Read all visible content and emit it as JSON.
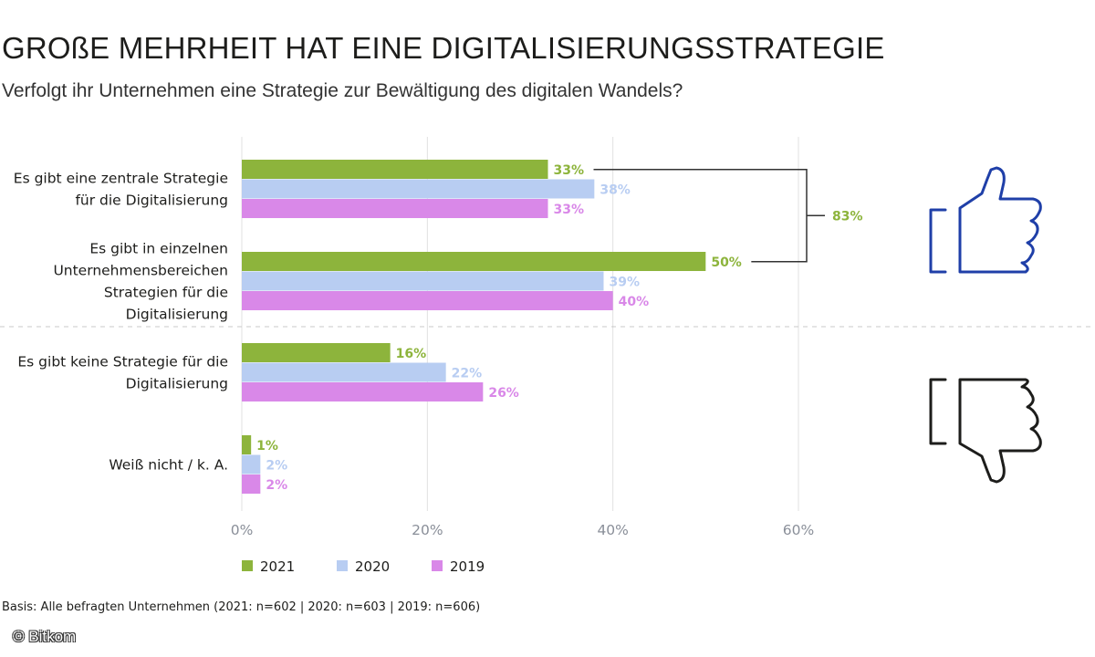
{
  "chart_data": {
    "type": "bar",
    "orientation": "horizontal",
    "title": "GROßE MEHRHEIT HAT EINE DIGITALISIERUNGSSTRATEGIE",
    "subtitle": "Verfolgt ihr Unternehmen eine Strategie zur Bewältigung des digitalen Wandels?",
    "categories": [
      {
        "lines": [
          "Es gibt eine zentrale Strategie",
          "für die Digitalisierung"
        ]
      },
      {
        "lines": [
          "Es gibt in einzelnen",
          "Unternehmensbereichen",
          "Strategien für die",
          "Digitalisierung"
        ]
      },
      {
        "lines": [
          "Es gibt keine Strategie für die",
          "Digitalisierung"
        ]
      },
      {
        "lines": [
          "Weiß nicht / k. A."
        ]
      }
    ],
    "series": [
      {
        "name": "2021",
        "color": "#8db43c",
        "values": [
          33,
          50,
          16,
          1
        ],
        "labels": [
          "33%",
          "50%",
          "16%",
          "1%"
        ]
      },
      {
        "name": "2020",
        "color": "#b8cdf2",
        "values": [
          38,
          39,
          22,
          2
        ],
        "labels": [
          "38%",
          "39%",
          "22%",
          "2%"
        ]
      },
      {
        "name": "2019",
        "color": "#d988e8",
        "values": [
          33,
          40,
          26,
          2
        ],
        "labels": [
          "33%",
          "40%",
          "26%",
          "2%"
        ]
      }
    ],
    "xlim": [
      0,
      60
    ],
    "xticks": [
      0,
      20,
      40,
      60
    ],
    "xtick_labels": [
      "0%",
      "20%",
      "40%",
      "60%"
    ],
    "grid": true,
    "legend_position": "bottom",
    "annotation": {
      "label": "83%",
      "color": "#8db43c",
      "spans_categories": [
        0,
        1
      ],
      "series": "2021"
    },
    "icons": {
      "positive": "thumbs-up-icon",
      "negative": "thumbs-down-icon",
      "positive_color": "#1f3fa8",
      "negative_color": "#1d1d1b"
    }
  },
  "footer": {
    "basis": "Basis: Alle befragten Unternehmen (2021: n=602 | 2020: n=603 | 2019: n=606)",
    "copyright": "© Bitkom"
  }
}
